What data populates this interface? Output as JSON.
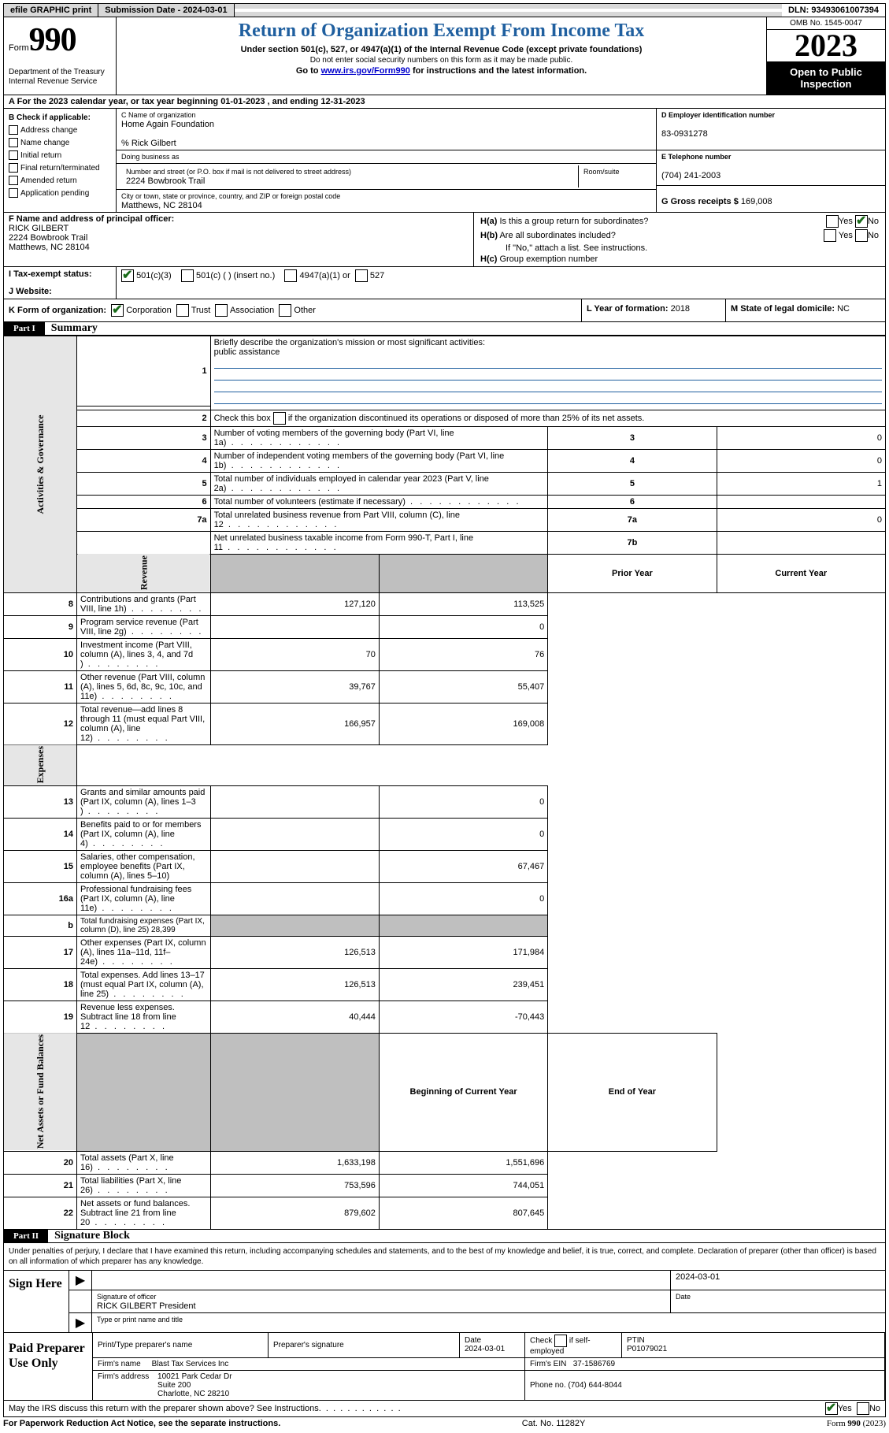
{
  "topbar": {
    "efile": "efile GRAPHIC print",
    "submission": "Submission Date - 2024-03-01",
    "dln": "DLN: 93493061007394"
  },
  "header": {
    "form_word": "Form",
    "form_num": "990",
    "title": "Return of Organization Exempt From Income Tax",
    "sub1": "Under section 501(c), 527, or 4947(a)(1) of the Internal Revenue Code (except private foundations)",
    "sub2": "Do not enter social security numbers on this form as it may be made public.",
    "sub3_pre": "Go to ",
    "sub3_link": "www.irs.gov/Form990",
    "sub3_post": " for instructions and the latest information.",
    "dept": "Department of the Treasury\nInternal Revenue Service",
    "omb": "OMB No. 1545-0047",
    "year": "2023",
    "open": "Open to Public Inspection"
  },
  "line_a": "A For the 2023 calendar year, or tax year beginning 01-01-2023   , and ending 12-31-2023",
  "sec_b": {
    "title": "B Check if applicable:",
    "opts": [
      "Address change",
      "Name change",
      "Initial return",
      "Final return/terminated",
      "Amended return",
      "Application pending"
    ]
  },
  "sec_c": {
    "name_lbl": "C Name of organization",
    "name": "Home Again Foundation",
    "care_of": "% Rick Gilbert",
    "dba_lbl": "Doing business as",
    "addr_lbl": "Number and street (or P.O. box if mail is not delivered to street address)",
    "addr": "2224 Bowbrook Trail",
    "room_lbl": "Room/suite",
    "city_lbl": "City or town, state or province, country, and ZIP or foreign postal code",
    "city": "Matthews, NC  28104"
  },
  "sec_d": {
    "lbl": "D Employer identification number",
    "val": "83-0931278"
  },
  "sec_e": {
    "lbl": "E Telephone number",
    "val": "(704) 241-2003"
  },
  "sec_g": {
    "lbl": "G Gross receipts $",
    "val": "169,008"
  },
  "sec_f": {
    "lbl": "F  Name and address of principal officer:",
    "name": "RICK GILBERT",
    "addr1": "2224 Bowbrook Trail",
    "addr2": "Matthews, NC  28104"
  },
  "sec_h": {
    "a_lbl": "H(a)  Is this a group return for subordinates?",
    "b_lbl": "H(b)  Are all subordinates included?",
    "note": "If \"No,\" attach a list. See instructions.",
    "c_lbl": "H(c)  Group exemption number"
  },
  "sec_i": {
    "lbl": "I   Tax-exempt status:",
    "o1": "501(c)(3)",
    "o2": "501(c) (  ) (insert no.)",
    "o3": "4947(a)(1) or",
    "o4": "527"
  },
  "sec_j": {
    "lbl": "J   Website:"
  },
  "sec_k": {
    "lbl": "K Form of organization:",
    "o1": "Corporation",
    "o2": "Trust",
    "o3": "Association",
    "o4": "Other"
  },
  "sec_l": {
    "lbl": "L Year of formation:",
    "val": "2018"
  },
  "sec_m": {
    "lbl": "M State of legal domicile:",
    "val": "NC"
  },
  "part1": {
    "num": "Part I",
    "title": "Summary"
  },
  "summary": {
    "gov_label": "Activities & Governance",
    "rev_label": "Revenue",
    "exp_label": "Expenses",
    "nab_label": "Net Assets or Fund Balances",
    "q1": "Briefly describe the organization's mission or most significant activities:",
    "q1_ans": "public assistance",
    "q2": "Check this box       if the organization discontinued its operations or disposed of more than 25% of its net assets.",
    "rows_gov": [
      {
        "n": "3",
        "lbl": "Number of voting members of the governing body (Part VI, line 1a)",
        "box": "3",
        "val": "0"
      },
      {
        "n": "4",
        "lbl": "Number of independent voting members of the governing body (Part VI, line 1b)",
        "box": "4",
        "val": "0"
      },
      {
        "n": "5",
        "lbl": "Total number of individuals employed in calendar year 2023 (Part V, line 2a)",
        "box": "5",
        "val": "1"
      },
      {
        "n": "6",
        "lbl": "Total number of volunteers (estimate if necessary)",
        "box": "6",
        "val": ""
      },
      {
        "n": "7a",
        "lbl": "Total unrelated business revenue from Part VIII, column (C), line 12",
        "box": "7a",
        "val": "0"
      },
      {
        "n": "",
        "lbl": "Net unrelated business taxable income from Form 990-T, Part I, line 11",
        "box": "7b",
        "val": ""
      }
    ],
    "col_prior": "Prior Year",
    "col_current": "Current Year",
    "rows_rev": [
      {
        "n": "8",
        "lbl": "Contributions and grants (Part VIII, line 1h)",
        "p": "127,120",
        "c": "113,525"
      },
      {
        "n": "9",
        "lbl": "Program service revenue (Part VIII, line 2g)",
        "p": "",
        "c": "0"
      },
      {
        "n": "10",
        "lbl": "Investment income (Part VIII, column (A), lines 3, 4, and 7d )",
        "p": "70",
        "c": "76"
      },
      {
        "n": "11",
        "lbl": "Other revenue (Part VIII, column (A), lines 5, 6d, 8c, 9c, 10c, and 11e)",
        "p": "39,767",
        "c": "55,407"
      },
      {
        "n": "12",
        "lbl": "Total revenue—add lines 8 through 11 (must equal Part VIII, column (A), line 12)",
        "p": "166,957",
        "c": "169,008"
      }
    ],
    "rows_exp": [
      {
        "n": "13",
        "lbl": "Grants and similar amounts paid (Part IX, column (A), lines 1–3 )",
        "p": "",
        "c": "0"
      },
      {
        "n": "14",
        "lbl": "Benefits paid to or for members (Part IX, column (A), line 4)",
        "p": "",
        "c": "0"
      },
      {
        "n": "15",
        "lbl": "Salaries, other compensation, employee benefits (Part IX, column (A), lines 5–10)",
        "p": "",
        "c": "67,467"
      },
      {
        "n": "16a",
        "lbl": "Professional fundraising fees (Part IX, column (A), line 11e)",
        "p": "",
        "c": "0"
      },
      {
        "n": "b",
        "lbl": "Total fundraising expenses (Part IX, column (D), line 25) 28,399",
        "p": "grey",
        "c": "grey"
      },
      {
        "n": "17",
        "lbl": "Other expenses (Part IX, column (A), lines 11a–11d, 11f–24e)",
        "p": "126,513",
        "c": "171,984"
      },
      {
        "n": "18",
        "lbl": "Total expenses. Add lines 13–17 (must equal Part IX, column (A), line 25)",
        "p": "126,513",
        "c": "239,451"
      },
      {
        "n": "19",
        "lbl": "Revenue less expenses. Subtract line 18 from line 12",
        "p": "40,444",
        "c": "-70,443"
      }
    ],
    "col_begin": "Beginning of Current Year",
    "col_end": "End of Year",
    "rows_nab": [
      {
        "n": "20",
        "lbl": "Total assets (Part X, line 16)",
        "p": "1,633,198",
        "c": "1,551,696"
      },
      {
        "n": "21",
        "lbl": "Total liabilities (Part X, line 26)",
        "p": "753,596",
        "c": "744,051"
      },
      {
        "n": "22",
        "lbl": "Net assets or fund balances. Subtract line 21 from line 20",
        "p": "879,602",
        "c": "807,645"
      }
    ]
  },
  "part2": {
    "num": "Part II",
    "title": "Signature Block"
  },
  "sig": {
    "declaration": "Under penalties of perjury, I declare that I have examined this return, including accompanying schedules and statements, and to the best of my knowledge and belief, it is true, correct, and complete. Declaration of preparer (other than officer) is based on all information of which preparer has any knowledge.",
    "sign_here": "Sign Here",
    "date": "2024-03-01",
    "sig_officer_lbl": "Signature of officer",
    "officer": "RICK GILBERT President",
    "type_lbl": "Type or print name and title",
    "date_lbl": "Date"
  },
  "prep": {
    "title": "Paid Preparer Use Only",
    "h1": "Print/Type preparer's name",
    "h2": "Preparer's signature",
    "h3": "Date",
    "date": "2024-03-01",
    "h4": "Check        if self-employed",
    "h5": "PTIN",
    "ptin": "P01079021",
    "firm_lbl": "Firm's name",
    "firm": "Blast Tax Services Inc",
    "ein_lbl": "Firm's EIN",
    "ein": "37-1586769",
    "addr_lbl": "Firm's address",
    "addr": "10021 Park Cedar Dr\nSuite 200\nCharlotte, NC  28210",
    "phone_lbl": "Phone no.",
    "phone": "(704) 644-8044"
  },
  "discuss": {
    "q": "May the IRS discuss this return with the preparer shown above? See Instructions.",
    "yes": "Yes",
    "no": "No"
  },
  "footer": {
    "left": "For Paperwork Reduction Act Notice, see the separate instructions.",
    "mid": "Cat. No. 11282Y",
    "right_pre": "Form ",
    "right_form": "990",
    "right_post": " (2023)"
  }
}
